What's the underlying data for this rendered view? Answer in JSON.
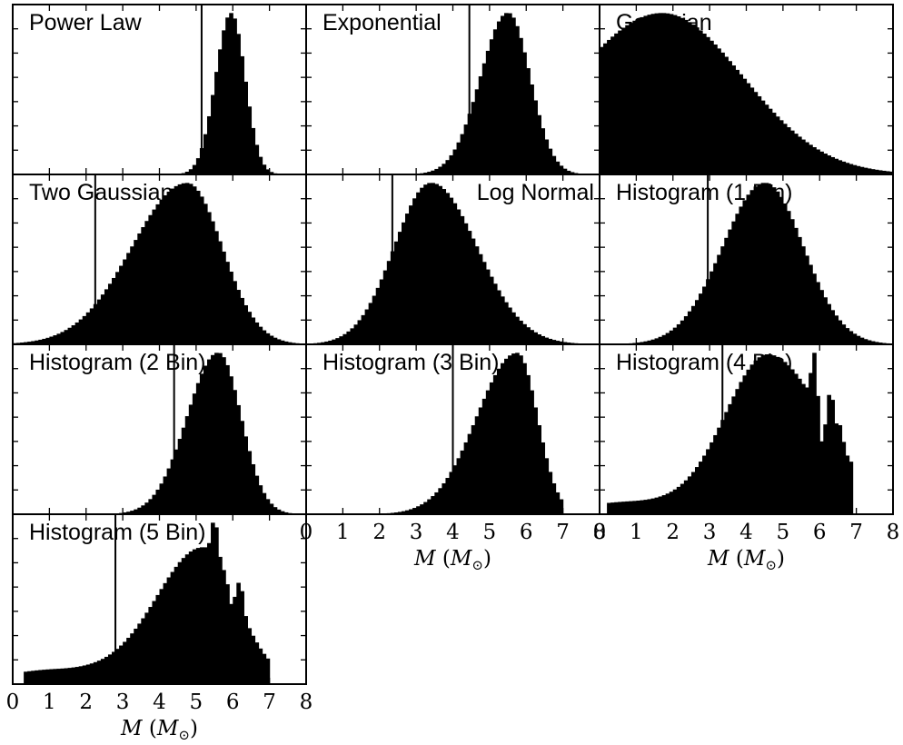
{
  "chart_data": [
    {
      "type": "histogram",
      "title": "Power Law",
      "xlim": [
        0,
        8
      ],
      "ylim": [
        0,
        1
      ],
      "threshold": 5.15,
      "shape": {
        "comps": [
          {
            "w": 1,
            "mu": 5.95,
            "sL": 0.42,
            "sR": 0.38
          }
        ]
      }
    },
    {
      "type": "histogram",
      "title": "Exponential",
      "xlim": [
        0,
        8
      ],
      "ylim": [
        0,
        1
      ],
      "threshold": 4.45,
      "shape": {
        "comps": [
          {
            "w": 1,
            "mu": 5.5,
            "sL": 0.75,
            "sR": 0.6
          }
        ]
      }
    },
    {
      "type": "histogram",
      "title": "Gaussian",
      "xlim": [
        0,
        8
      ],
      "ylim": [
        0,
        1
      ],
      "threshold": null,
      "shape": {
        "comps": [
          {
            "w": 1,
            "mu": 1.7,
            "sL": 2.4,
            "sR": 2.2
          }
        ]
      }
    },
    {
      "type": "histogram",
      "title": "Two Gaussians",
      "xlim": [
        0,
        8
      ],
      "ylim": [
        0,
        1
      ],
      "threshold": 2.25,
      "shape": {
        "comps": [
          {
            "w": 1,
            "mu": 4.75,
            "sL": 1.5,
            "sR": 0.95
          }
        ]
      }
    },
    {
      "type": "histogram",
      "title": "Log Normal",
      "xlim": [
        0,
        8
      ],
      "ylim": [
        0,
        1
      ],
      "threshold": 2.35,
      "shape": {
        "comps": [
          {
            "w": 1,
            "mu": 3.4,
            "sL": 1.0,
            "sR": 1.25
          }
        ]
      }
    },
    {
      "type": "histogram",
      "title": "Histogram (1 Bin)",
      "xlim": [
        0,
        8
      ],
      "ylim": [
        0,
        1
      ],
      "threshold": 2.95,
      "shape": {
        "comps": [
          {
            "w": 1,
            "mu": 4.5,
            "sL": 1.15,
            "sR": 1.05
          }
        ]
      }
    },
    {
      "type": "histogram",
      "title": "Histogram (2 Bin)",
      "xlim": [
        0,
        8
      ],
      "ylim": [
        0,
        1
      ],
      "threshold": 4.4,
      "shape": {
        "comps": [
          {
            "w": 1,
            "mu": 5.6,
            "sL": 0.85,
            "sR": 0.62
          }
        ]
      }
    },
    {
      "type": "histogram",
      "title": "Histogram (3 Bin)",
      "xlim": [
        0,
        8
      ],
      "ylim": [
        0,
        1
      ],
      "threshold": 4.0,
      "shape": {
        "comps": [
          {
            "w": 1,
            "mu": 5.75,
            "sL": 1.1,
            "sR": 0.55
          }
        ]
      },
      "cutoff": 6.95
    },
    {
      "type": "histogram",
      "title": "Histogram (4 Bin)",
      "xlim": [
        0,
        8
      ],
      "ylim": [
        0,
        1
      ],
      "threshold": 3.35,
      "shape": {
        "comps": [
          {
            "w": 0.62,
            "mu": 4.6,
            "sL": 1.15,
            "sR": 1.5
          },
          {
            "w": 0.05,
            "mu": 0.9,
            "sL": 1.5,
            "sR": 3.5
          }
        ],
        "floor_from": 0.2,
        "spikes": [
          [
            5.85,
            0.2
          ],
          [
            6.3,
            0.16
          ],
          [
            6.55,
            0.08
          ]
        ],
        "dips": [
          [
            6.05,
            0.12
          ]
        ]
      },
      "cutoff": 6.9
    },
    {
      "type": "histogram",
      "title": "Histogram (5 Bin)",
      "xlim": [
        0,
        8
      ],
      "ylim": [
        0,
        1
      ],
      "threshold": 2.8,
      "shape": {
        "comps": [
          {
            "w": 0.7,
            "mu": 5.2,
            "sL": 1.25,
            "sR": 0.9
          },
          {
            "w": 0.08,
            "mu": 1.2,
            "sL": 1.5,
            "sR": 4.5
          }
        ],
        "floor_from": 0.3,
        "spikes": [
          [
            5.5,
            0.2
          ],
          [
            6.2,
            0.14
          ]
        ],
        "dips": [
          [
            5.95,
            0.1
          ]
        ]
      },
      "cutoff": 7.0
    }
  ],
  "axes": {
    "xticks": [
      "0",
      "1",
      "2",
      "3",
      "4",
      "5",
      "6",
      "7",
      "8"
    ],
    "xlabel": {
      "symbol": "M",
      "open": "(",
      "unit": "M",
      "sub": "⊙",
      "close": ")"
    }
  },
  "colors": {
    "fill": "#000000",
    "frame": "#000000",
    "background": "#ffffff"
  }
}
